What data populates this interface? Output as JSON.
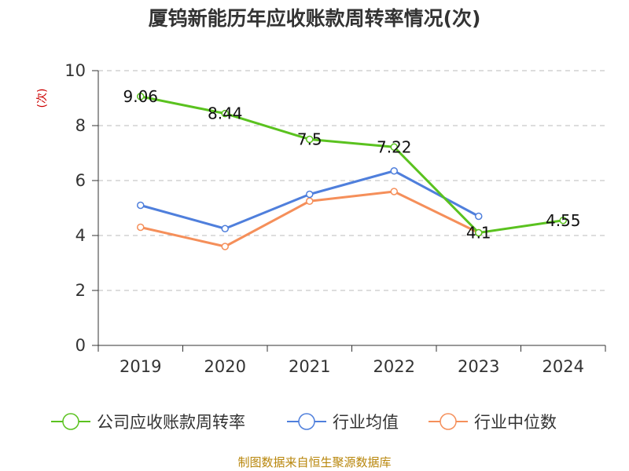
{
  "chart_data": {
    "type": "line",
    "title": "厦钨新能历年应收账款周转率情况(次)",
    "xlabel": "",
    "ylabel": "(次)",
    "categories": [
      "2019",
      "2020",
      "2021",
      "2022",
      "2023",
      "2024"
    ],
    "ylim": [
      0,
      10
    ],
    "yticks": [
      0,
      2,
      4,
      6,
      8,
      10
    ],
    "grid": true,
    "legend_position": "bottom",
    "series": [
      {
        "name": "公司应收账款周转率",
        "color": "#5ac21f",
        "values": [
          9.06,
          8.44,
          7.5,
          7.22,
          4.1,
          4.55
        ],
        "labels": [
          "9.06",
          "8.44",
          "7.5",
          "7.22",
          "4.1",
          "4.55"
        ]
      },
      {
        "name": "行业均值",
        "color": "#4f7fdc",
        "values": [
          5.1,
          4.25,
          5.5,
          6.35,
          4.7,
          null
        ]
      },
      {
        "name": "行业中位数",
        "color": "#f58f5a",
        "values": [
          4.3,
          3.6,
          5.25,
          5.6,
          4.1,
          null
        ]
      }
    ],
    "source": "制图数据来自恒生聚源数据库"
  }
}
